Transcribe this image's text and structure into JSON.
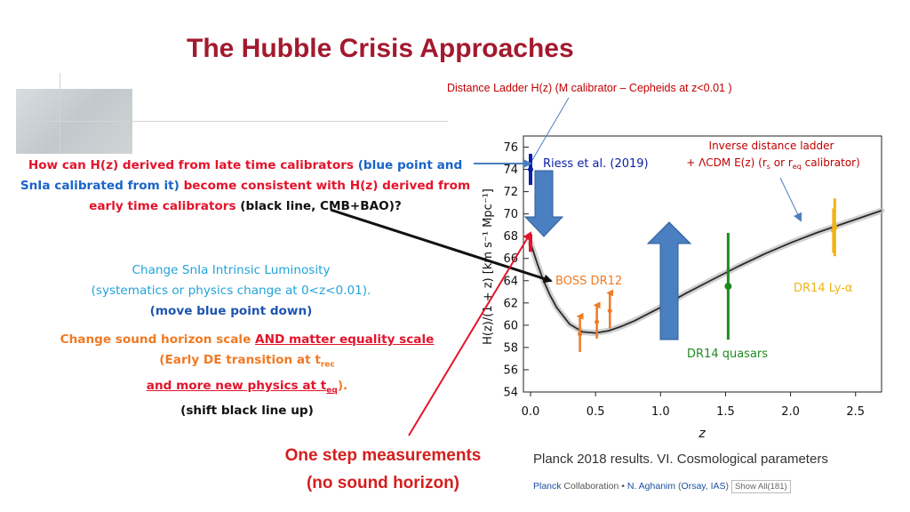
{
  "slide": {
    "title": "The Hubble Crisis Approaches",
    "caption_distance_ladder": "Distance Ladder H(z)  (M calibrator – Cepheids at z<0.01 )",
    "caption_inverse_1": "Inverse distance ladder",
    "caption_inverse_2_a": "+ ΛCDM E(z)  (r",
    "caption_inverse_2_sub1": "s",
    "caption_inverse_2_b": " or r",
    "caption_inverse_2_sub2": "eq",
    "caption_inverse_2_c": " calibrator)"
  },
  "question": {
    "part1": "How can H(z) derived from late time calibrators",
    "part2": " (blue point and SnIa calibrated from it)",
    "part3": " become consistent with H(z) derived from early time calibrators",
    "part4": " (black line, CMB+BAO)?"
  },
  "snia_block": {
    "line1": "Change SnIa Intrinsic Luminosity",
    "line2": "(systematics or physics change at 0<z<0.01).",
    "line3": "(move blue point down)"
  },
  "sound_block": {
    "line1_a": "Change sound horizon scale ",
    "line1_b": "AND matter equality scale",
    "line2_a": "(Early DE transition at t",
    "line2_sub": "rec",
    "line3_a": "and more new physics at t",
    "line3_sub": "eq",
    "line3_b": ").",
    "line4": "(shift black line up)"
  },
  "onestep": {
    "line1": "One step measurements",
    "line2": "(no sound horizon)"
  },
  "paper": {
    "title": "Planck 2018 results. VI. Cosmological parameters",
    "collab": "Planck",
    "collab_rest": " Collaboration • ",
    "author": "N. Aghanim",
    "affil_open": " (",
    "affil1": "Orsay",
    "affil_sep": ", ",
    "affil2": "IAS",
    "affil_close": ")",
    "show_all": "Show All(181)"
  },
  "colors": {
    "title": "#a3192e",
    "red": "#e3142c",
    "blue": "#1a64c8",
    "orange": "#f07a24",
    "riess": "#0a1fa8",
    "quasar": "#1e8a1e",
    "lya": "#f0b418",
    "arrow_fill": "#4a7fc1"
  },
  "chart_data": {
    "type": "scatter",
    "xlabel": "z",
    "ylabel": "H(z)/(1 + z) [km s⁻¹ Mpc⁻¹]",
    "xlim": [
      0.0,
      2.7
    ],
    "ylim": [
      54,
      77
    ],
    "xticks": [
      "0.0",
      "0.5",
      "1.0",
      "1.5",
      "2.0",
      "2.5"
    ],
    "xtick_values": [
      0.0,
      0.5,
      1.0,
      1.5,
      2.0,
      2.5
    ],
    "yticks": [
      "54",
      "56",
      "58",
      "60",
      "62",
      "64",
      "66",
      "68",
      "70",
      "72",
      "74",
      "76"
    ],
    "ytick_values": [
      54,
      56,
      58,
      60,
      62,
      64,
      66,
      68,
      70,
      72,
      74,
      76
    ],
    "lcdm_curve": {
      "name": "ΛCDM (Planck 2018)",
      "x": [
        0.0,
        0.05,
        0.1,
        0.15,
        0.2,
        0.3,
        0.4,
        0.5,
        0.6,
        0.7,
        0.8,
        0.9,
        1.0,
        1.2,
        1.4,
        1.6,
        1.8,
        2.0,
        2.2,
        2.4,
        2.6,
        2.7
      ],
      "y": [
        67.4,
        65.6,
        64.0,
        62.7,
        61.6,
        60.1,
        59.4,
        59.3,
        59.5,
        59.9,
        60.4,
        61.0,
        61.6,
        62.9,
        64.1,
        65.3,
        66.4,
        67.4,
        68.3,
        69.1,
        69.9,
        70.3
      ]
    },
    "series": [
      {
        "name": "Riess et al. (2019)",
        "label": "Riess et al.  (2019)",
        "color": "#0a1fa8",
        "points": [
          {
            "x": 0.0,
            "y": 74.0,
            "err": 1.4
          }
        ]
      },
      {
        "name": "BOSS DR12",
        "label": "BOSS DR12",
        "color": "#f07a24",
        "points": [
          {
            "x": 0.38,
            "y": 59.2,
            "err": 1.6
          },
          {
            "x": 0.51,
            "y": 60.3,
            "err": 1.5
          },
          {
            "x": 0.61,
            "y": 61.3,
            "err": 1.6
          }
        ]
      },
      {
        "name": "DR14 quasars",
        "label": "DR14 quasars",
        "color": "#1e8a1e",
        "points": [
          {
            "x": 1.52,
            "y": 63.5,
            "err": 4.8
          }
        ]
      },
      {
        "name": "DR14 Ly-α",
        "label": "DR14 Ly-α",
        "color": "#f0b418",
        "points": [
          {
            "x": 2.33,
            "y": 68.5,
            "err": 2.0
          },
          {
            "x": 2.34,
            "y": 68.8,
            "err": 2.6
          }
        ]
      }
    ],
    "early_point": {
      "name": "Planck ΛCDM H0",
      "x": 0.0,
      "y": 67.4,
      "color": "#e3142c"
    }
  }
}
